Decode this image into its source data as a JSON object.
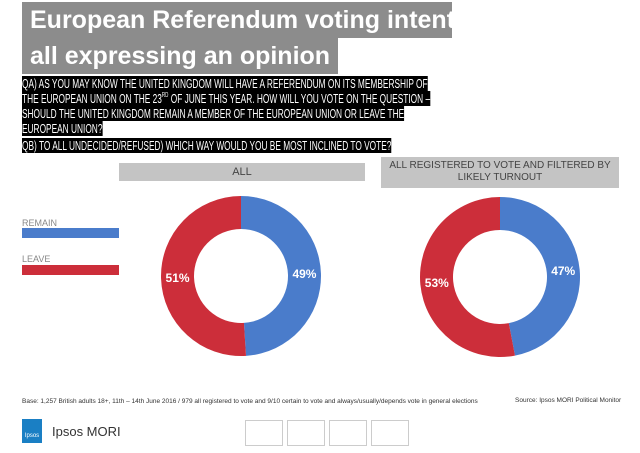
{
  "title": {
    "line1": "European Referendum voting intention",
    "line2": "all expressing an opinion"
  },
  "question": {
    "lines": [
      "QA) AS YOU MAY KNOW THE UNITED KINGDOM WILL HAVE A REFERENDUM ON ITS MEMBERSHIP OF",
      "THE EUROPEAN UNION ON THE 23",
      "RD",
      " OF JUNE THIS YEAR. HOW WILL YOU VOTE ON THE QUESTION –",
      "SHOULD THE UNITED KINGDOM REMAIN A MEMBER OF THE EUROPEAN UNION OR LEAVE THE",
      "EUROPEAN UNION?"
    ],
    "qb": "QB) TO ALL UNDECIDED/REFUSED) WHICH WAY WOULD YOU BE MOST INCLINED TO VOTE?"
  },
  "colors": {
    "remain": "#4a7ccb",
    "leave": "#cc2e3a"
  },
  "chart_data": [
    {
      "type": "pie",
      "style": "donut",
      "title": "ALL",
      "categories": [
        "REMAIN",
        "LEAVE"
      ],
      "values": [
        49,
        51
      ],
      "data_labels": [
        "49%",
        "51%"
      ]
    },
    {
      "type": "pie",
      "style": "donut",
      "title": "ALL REGISTERED TO VOTE AND FILTERED BY LIKELY TURNOUT",
      "categories": [
        "REMAIN",
        "LEAVE"
      ],
      "values": [
        47,
        53
      ],
      "data_labels": [
        "47%",
        "53%"
      ]
    }
  ],
  "legend": {
    "remain": "REMAIN",
    "leave": "LEAVE"
  },
  "footer": {
    "base": "Base: 1,257  British adults 18+, 11th – 14th June 2016  / 979  all registered to vote and 9/10 certain to vote and always/usually/depends vote in general elections",
    "source": "Source: Ipsos MORI Political Monitor",
    "logo_text": "Ipsos",
    "brand": "Ipsos MORI"
  }
}
